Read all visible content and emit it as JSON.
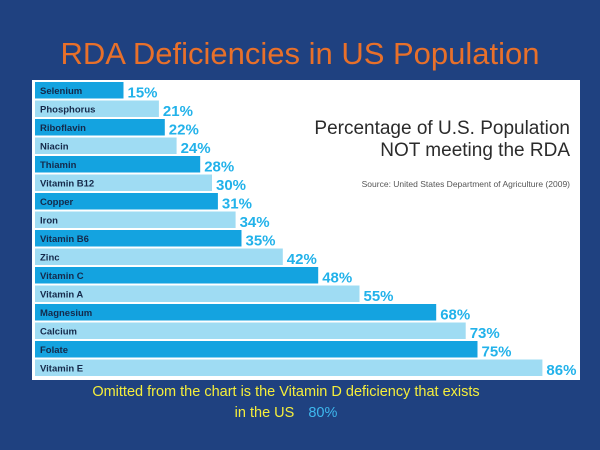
{
  "slide": {
    "title": "RDA Deficiencies in US Population",
    "footnote_line1": "Omitted from the chart is the Vitamin D deficiency that exists",
    "footnote_line2": "in the US",
    "footnote_value": "80%"
  },
  "colors": {
    "background": "#1f4180",
    "title": "#e8702a",
    "footnote": "#f5ee3b",
    "footnote_value": "#3eb8ee",
    "bar_dark": "#14a3e0",
    "bar_light": "#9fdcf3",
    "value_label": "#22b2ea"
  },
  "chart_data": {
    "type": "bar",
    "orientation": "horizontal",
    "title_line1": "Percentage of U.S. Population",
    "title_line2": "NOT meeting the RDA",
    "source": "Source: United States Department of Agriculture (2009)",
    "unit": "%",
    "xlim": [
      0,
      100
    ],
    "categories": [
      "Selenium",
      "Phosphorus",
      "Riboflavin",
      "Niacin",
      "Thiamin",
      "Vitamin B12",
      "Copper",
      "Iron",
      "Vitamin B6",
      "Zinc",
      "Vitamin C",
      "Vitamin A",
      "Magnesium",
      "Calcium",
      "Folate",
      "Vitamin E"
    ],
    "values": [
      15,
      21,
      22,
      24,
      28,
      30,
      31,
      34,
      35,
      42,
      48,
      55,
      68,
      73,
      75,
      86
    ]
  }
}
